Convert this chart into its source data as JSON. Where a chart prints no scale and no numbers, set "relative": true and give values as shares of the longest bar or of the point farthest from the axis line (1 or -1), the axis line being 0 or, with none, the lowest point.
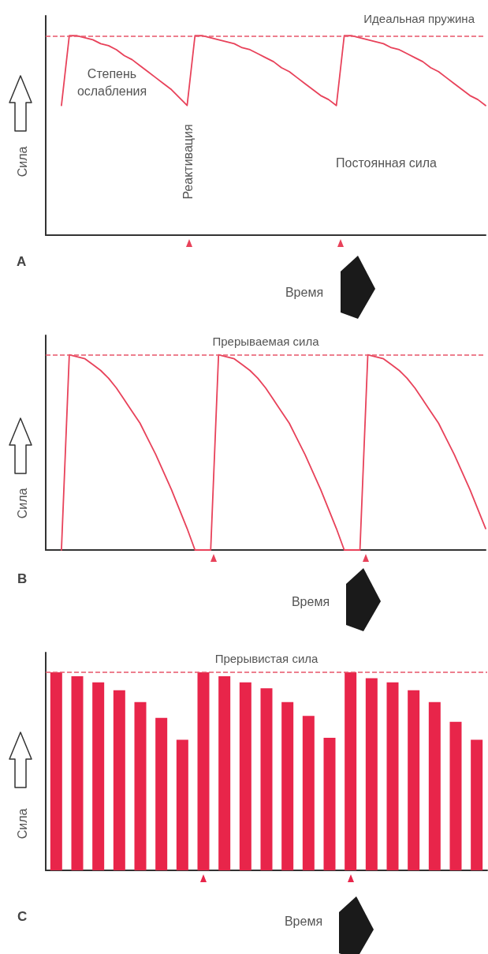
{
  "chart_data": [
    {
      "type": "line",
      "title": "A",
      "xlabel": "Время",
      "ylabel": "Сила",
      "relative": true,
      "marker": "none",
      "color": "#e8425a",
      "annotations": [
        "Степень ослабления",
        "Реактивация",
        "Постоянная сила"
      ],
      "ref_lines": [
        {
          "axis": "y",
          "value": 1,
          "label": "Идеальная пружина",
          "color": "#e8566a",
          "line_style": "dashed"
        }
      ],
      "categories": [
        null,
        null,
        null,
        null,
        null,
        null,
        null,
        null,
        null,
        null,
        null,
        null,
        null,
        null,
        null,
        null,
        null,
        null,
        null,
        null,
        null,
        null,
        null,
        null,
        null,
        null,
        null,
        null,
        null,
        null,
        null,
        null,
        null,
        null,
        null,
        null,
        null,
        null,
        null,
        null,
        null,
        null,
        null,
        null,
        null,
        null,
        null,
        null,
        null,
        null,
        null,
        null,
        null,
        null,
        null,
        null,
        null
      ],
      "values": [
        null,
        null,
        0.65,
        1,
        1,
        0.99,
        0.98,
        0.96,
        0.95,
        0.93,
        0.9,
        0.88,
        0.85,
        0.82,
        0.79,
        0.76,
        0.73,
        0.69,
        0.65,
        1,
        1,
        0.99,
        0.98,
        0.97,
        0.96,
        0.94,
        0.93,
        0.91,
        0.89,
        0.87,
        0.84,
        0.82,
        0.79,
        0.76,
        0.73,
        0.7,
        0.68,
        0.65,
        1,
        1,
        0.99,
        0.98,
        0.97,
        0.96,
        0.94,
        0.93,
        0.91,
        0.89,
        0.87,
        0.84,
        0.82,
        0.79,
        0.76,
        0.73,
        0.7,
        0.68,
        0.65
      ]
    },
    {
      "type": "line",
      "title": "B",
      "xlabel": "Время",
      "ylabel": "Сила",
      "relative": true,
      "marker": "none",
      "color": "#e8425a",
      "ref_lines": [
        {
          "axis": "y",
          "value": 1,
          "label": "Прерываемая сила",
          "color": "#e8566a",
          "line_style": "dashed"
        }
      ],
      "categories": [
        null,
        null,
        null,
        null,
        null,
        null,
        null,
        null,
        null,
        null,
        null,
        null,
        null,
        null,
        null,
        null,
        null,
        null,
        null,
        null,
        null,
        null,
        null,
        null,
        null,
        null,
        null,
        null,
        null,
        null,
        null,
        null,
        null,
        null,
        null,
        null,
        null,
        null,
        null,
        null,
        null,
        null,
        null,
        null,
        null,
        null,
        null,
        null,
        null,
        null,
        null,
        null,
        null,
        null,
        null,
        null,
        null
      ],
      "values": [
        null,
        null,
        0,
        1,
        0.99,
        0.98,
        0.95,
        0.92,
        0.88,
        0.83,
        0.77,
        0.71,
        0.65,
        0.57,
        0.49,
        0.4,
        0.31,
        0.21,
        0.11,
        0,
        0,
        0,
        1,
        0.99,
        0.98,
        0.95,
        0.92,
        0.88,
        0.83,
        0.77,
        0.71,
        0.65,
        0.57,
        0.49,
        0.4,
        0.31,
        0.21,
        0.11,
        0,
        0,
        0,
        1,
        0.99,
        0.98,
        0.95,
        0.92,
        0.88,
        0.83,
        0.77,
        0.71,
        0.65,
        0.57,
        0.49,
        0.4,
        0.31,
        0.21,
        0.11
      ]
    },
    {
      "type": "bar",
      "title": "C",
      "xlabel": "Время",
      "ylabel": "Сила",
      "relative": true,
      "color": "#e8254a",
      "ref_lines": [
        {
          "axis": "y",
          "value": 1,
          "label": "Прерывистая сила",
          "color": "#e8566a",
          "line_style": "dashed"
        }
      ],
      "categories": [
        null,
        null,
        null,
        null,
        null,
        null,
        null,
        null,
        null,
        null,
        null,
        null,
        null,
        null,
        null,
        null,
        null,
        null,
        null,
        null,
        null
      ],
      "values": [
        1,
        0.98,
        0.95,
        0.91,
        0.85,
        0.77,
        0.66,
        1,
        0.98,
        0.95,
        0.92,
        0.85,
        0.78,
        0.67,
        1,
        0.97,
        0.95,
        0.91,
        0.85,
        0.75,
        0.66
      ]
    }
  ]
}
